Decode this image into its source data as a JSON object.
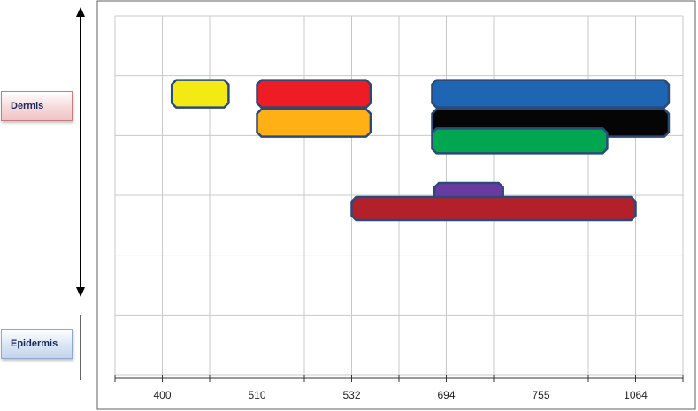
{
  "layers": {
    "dermis": "Dermis",
    "epidermis": "Epidermis"
  },
  "x_labels": [
    "400",
    "510",
    "532",
    "694",
    "755",
    "1064"
  ],
  "colors": {
    "grid": "#c8c8c8",
    "frame": "#606060",
    "outline": "#2b4a7a"
  },
  "bars": [
    {
      "name": "yellow",
      "fill": "#f2ea12",
      "col_start": 1.2,
      "col_end": 2.4,
      "row": 1,
      "slot": "upper"
    },
    {
      "name": "red",
      "fill": "#ee1c25",
      "col_start": 3.0,
      "col_end": 5.4,
      "row": 1,
      "slot": "upper"
    },
    {
      "name": "orange",
      "fill": "#ffb015",
      "col_start": 3.0,
      "col_end": 5.4,
      "row": 1,
      "slot": "lower"
    },
    {
      "name": "blue",
      "fill": "#1e66b4",
      "col_start": 6.7,
      "col_end": 11.7,
      "row": 1,
      "slot": "upper"
    },
    {
      "name": "black",
      "fill": "#050505",
      "col_start": 6.7,
      "col_end": 11.7,
      "row": 1,
      "slot": "lower"
    },
    {
      "name": "green",
      "fill": "#00a650",
      "col_start": 6.7,
      "col_end": 10.4,
      "row": 2,
      "slot": "top"
    },
    {
      "name": "purple",
      "fill": "#6a3aa3",
      "col_start": 6.75,
      "col_end": 8.2,
      "row": 3,
      "slot": "low"
    },
    {
      "name": "dark-red",
      "fill": "#b3202a",
      "col_start": 5.0,
      "col_end": 11.0,
      "row": 3,
      "slot": "bottom"
    }
  ]
}
